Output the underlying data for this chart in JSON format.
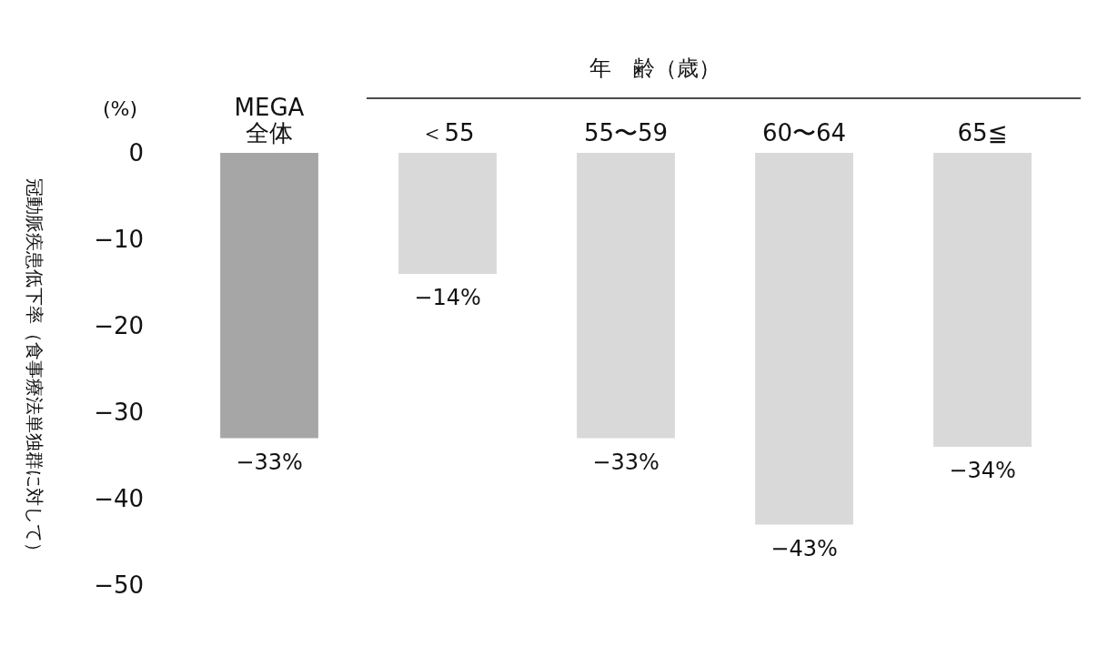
{
  "chart_data": {
    "type": "bar",
    "ylabel": "冠動脈疾患低下率（食事療法単独群に対して）",
    "categories": [
      "MEGA\n全体",
      "＜55",
      "55〜59",
      "60〜64",
      "65≦"
    ],
    "values": [
      -33,
      -14,
      -33,
      -43,
      -34
    ],
    "colors": [
      "#a6a6a6",
      "#d9d9d9",
      "#d9d9d9",
      "#d9d9d9",
      "#d9d9d9"
    ],
    "value_labels": [
      "−33%",
      "−14%",
      "−33%",
      "−43%",
      "−34%"
    ],
    "ylim": [
      -50,
      0
    ],
    "yticks": [
      {
        "value": 0,
        "label": "0"
      },
      {
        "value": -10,
        "label": "−10"
      },
      {
        "value": -20,
        "label": "−20"
      },
      {
        "value": -30,
        "label": "−30"
      },
      {
        "value": -40,
        "label": "−40"
      },
      {
        "value": -50,
        "label": "−50"
      }
    ],
    "annotations": [
      "(%)",
      "年　齢（歳）"
    ],
    "grid": false
  }
}
